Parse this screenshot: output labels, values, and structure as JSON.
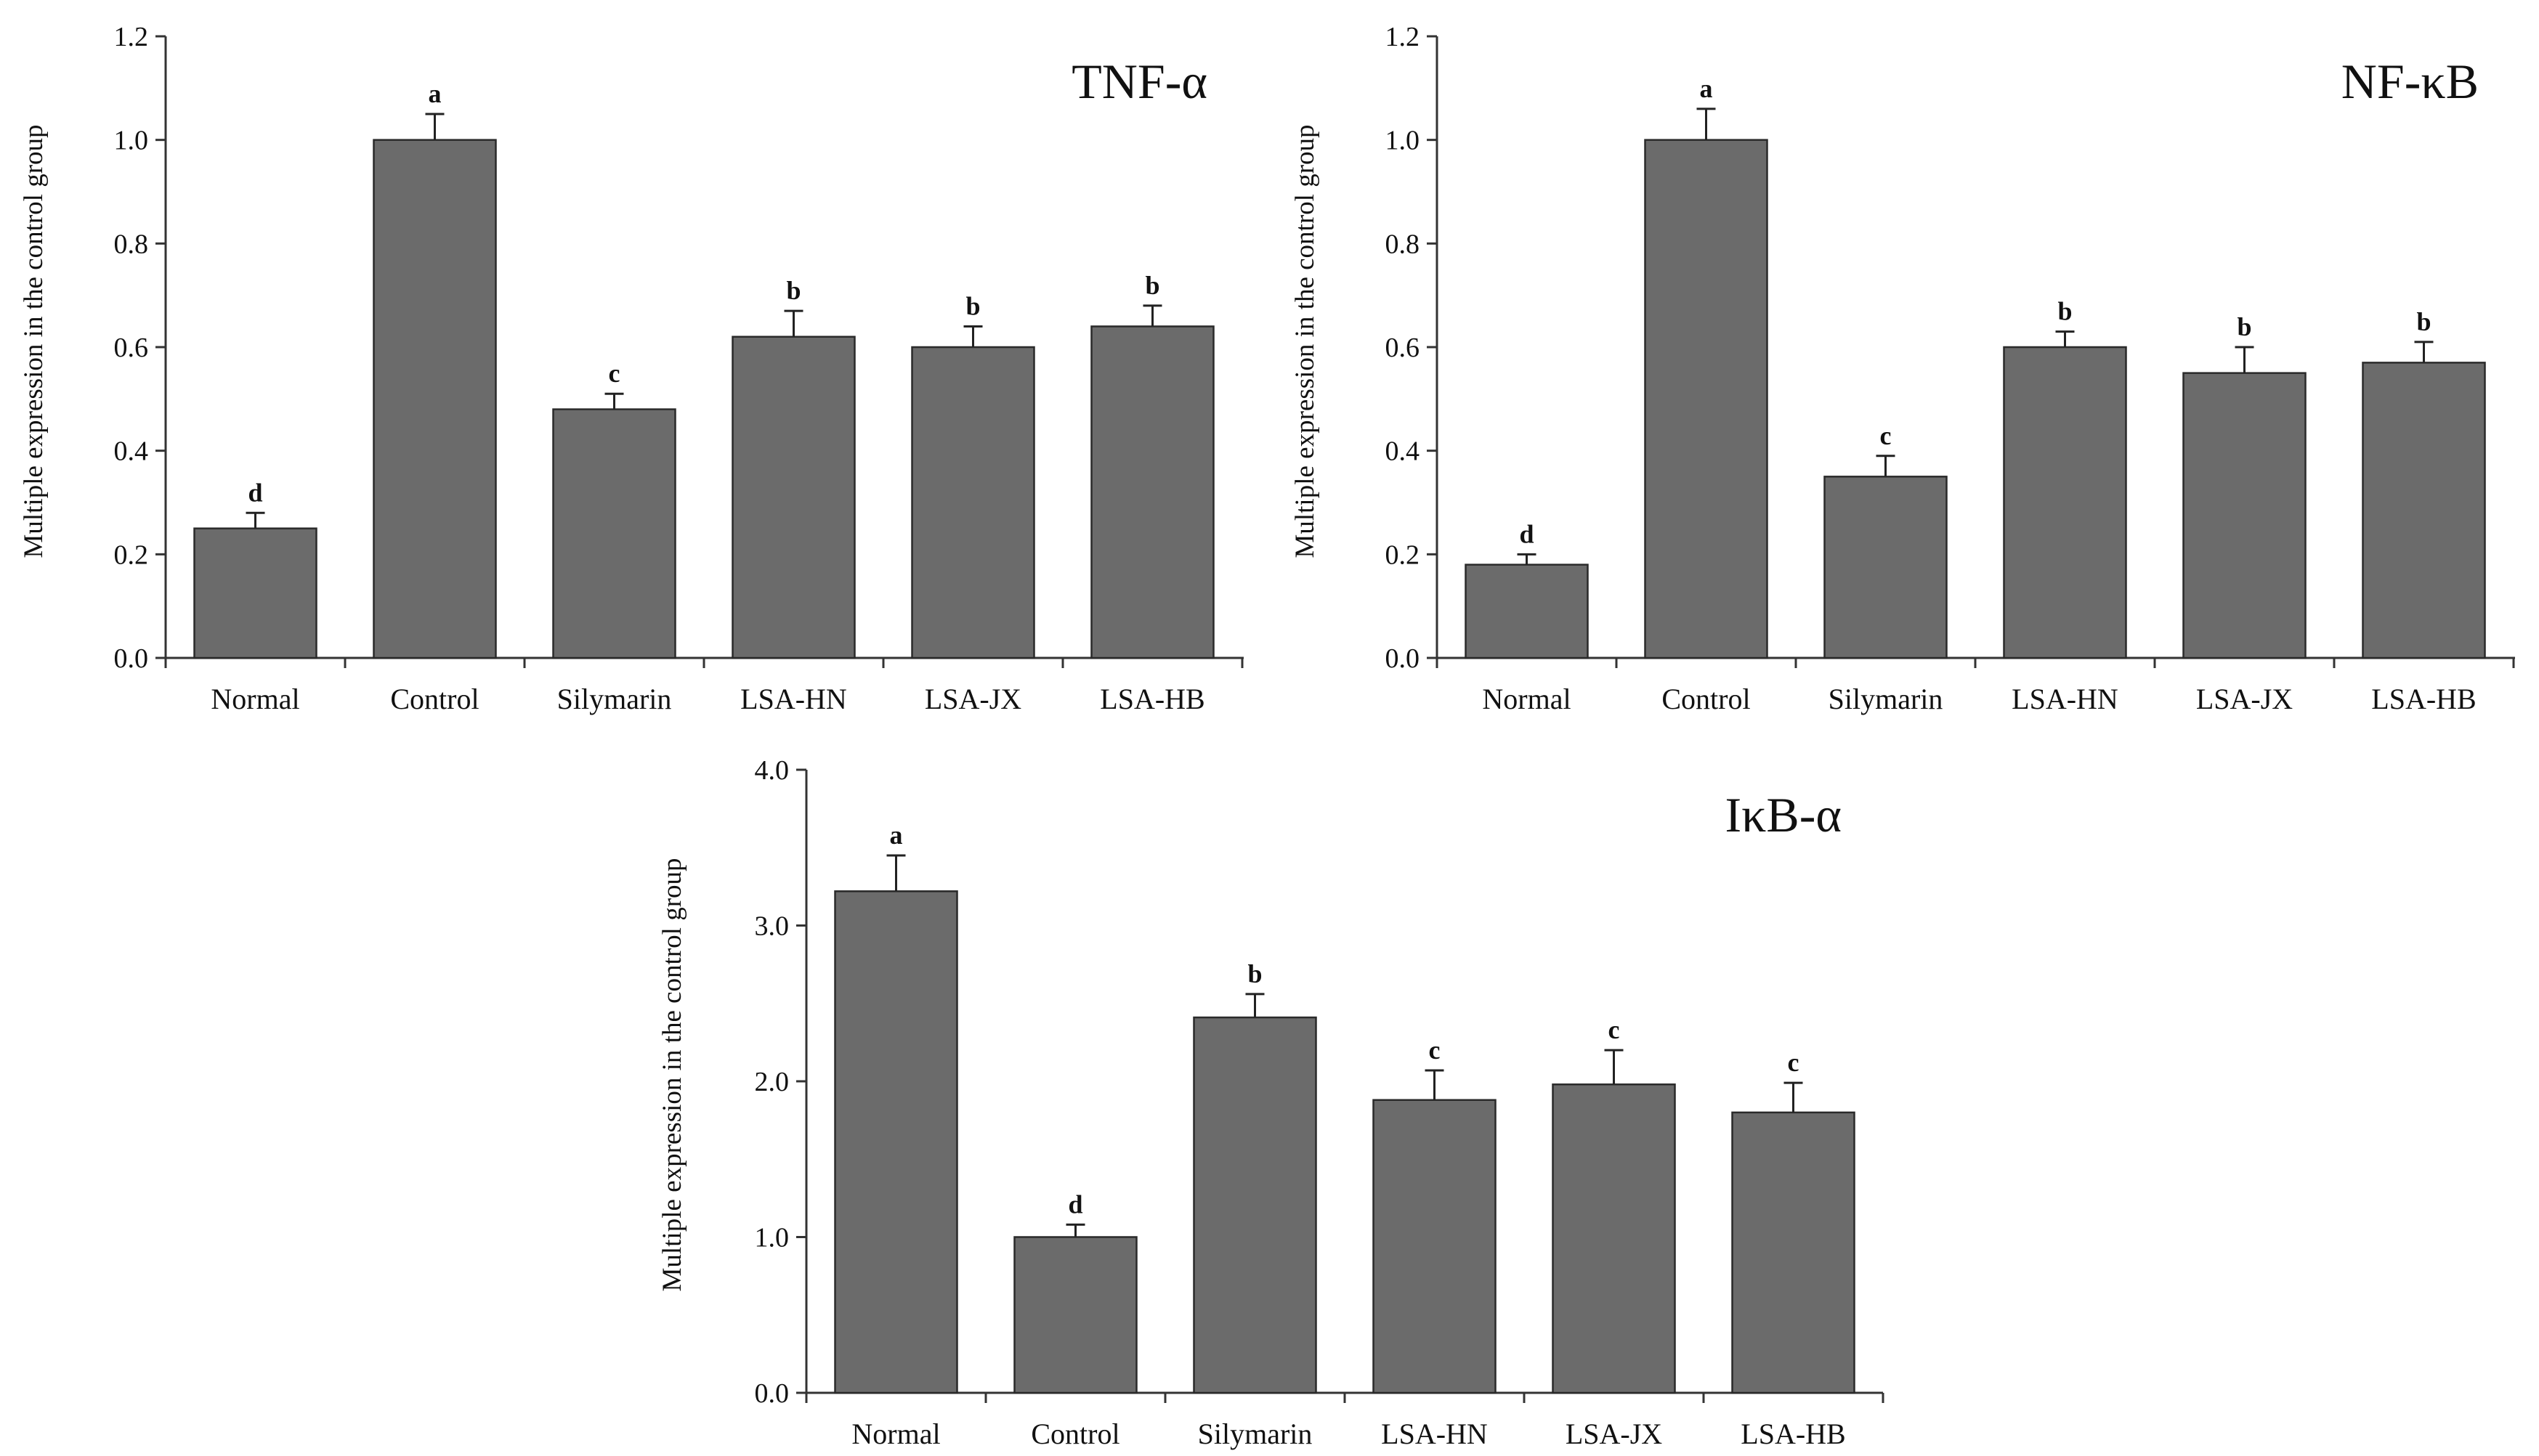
{
  "chart_data": [
    {
      "type": "bar",
      "title": "TNF-α",
      "ylabel": "Multiple expression in the control group",
      "categories": [
        "Normal",
        "Control",
        "Silymarin",
        "LSA-HN",
        "LSA-JX",
        "LSA-HB"
      ],
      "values": [
        0.25,
        1.0,
        0.48,
        0.62,
        0.6,
        0.64
      ],
      "errors": [
        0.03,
        0.05,
        0.03,
        0.05,
        0.04,
        0.04
      ],
      "significance": [
        "d",
        "a",
        "c",
        "b",
        "b",
        "b"
      ],
      "ylim": [
        0,
        1.2
      ],
      "yticks": [
        "0.0",
        "0.2",
        "0.4",
        "0.6",
        "0.8",
        "1.0",
        "1.2"
      ]
    },
    {
      "type": "bar",
      "title": "NF-κB",
      "ylabel": "Multiple expression in the control group",
      "categories": [
        "Normal",
        "Control",
        "Silymarin",
        "LSA-HN",
        "LSA-JX",
        "LSA-HB"
      ],
      "values": [
        0.18,
        1.0,
        0.35,
        0.6,
        0.55,
        0.57
      ],
      "errors": [
        0.02,
        0.06,
        0.04,
        0.03,
        0.05,
        0.04
      ],
      "significance": [
        "d",
        "a",
        "c",
        "b",
        "b",
        "b"
      ],
      "ylim": [
        0,
        1.2
      ],
      "yticks": [
        "0.0",
        "0.2",
        "0.4",
        "0.6",
        "0.8",
        "1.0",
        "1.2"
      ]
    },
    {
      "type": "bar",
      "title": "IκB-α",
      "ylabel": "Multiple expression in the control group",
      "categories": [
        "Normal",
        "Control",
        "Silymarin",
        "LSA-HN",
        "LSA-JX",
        "LSA-HB"
      ],
      "values": [
        3.22,
        1.0,
        2.41,
        1.88,
        1.98,
        1.8
      ],
      "errors": [
        0.23,
        0.08,
        0.15,
        0.19,
        0.22,
        0.19
      ],
      "significance": [
        "a",
        "d",
        "b",
        "c",
        "c",
        "c"
      ],
      "ylim": [
        0,
        4.0
      ],
      "yticks": [
        "0.0",
        "1.0",
        "2.0",
        "3.0",
        "4.0"
      ]
    }
  ]
}
